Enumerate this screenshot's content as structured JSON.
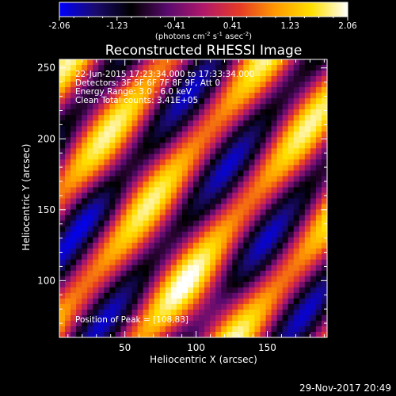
{
  "chart_data": {
    "type": "heatmap",
    "title": "Reconstructed RHESSI Image",
    "xlabel": "Heliocentric X (arcsec)",
    "ylabel": "Heliocentric Y (arcsec)",
    "x_range": [
      4,
      192
    ],
    "y_range": [
      60,
      256
    ],
    "x_ticks": [
      50,
      100,
      150
    ],
    "y_ticks": [
      100,
      150,
      200,
      250
    ],
    "colorbar": {
      "min": -2.06,
      "max": 2.06,
      "ticks": [
        "-2.06",
        "-1.23",
        "-0.41",
        "0.41",
        "1.23",
        "2.06"
      ],
      "unit_parts": [
        "(photons cm",
        "-2",
        " s",
        "-1",
        " asec",
        "-2",
        ")"
      ],
      "colormap": [
        "#0000ff",
        "#1a0a6e",
        "#000000",
        "#5a0a6e",
        "#b0186a",
        "#e63a26",
        "#ff9a00",
        "#ffe000",
        "#ffffff"
      ]
    },
    "annotations": [
      "22-Jun-2015 17:23:34.000 to 17:33:34.000",
      "Detectors: 3F 5F 6F 7F 8F 9F, Att 0",
      "Energy Range: 3.0 - 6.0 keV",
      "Clean     Total counts: 3.41E+05"
    ],
    "peak_label": "Position of Peak = [108,83]",
    "peak_position": [
      108,
      83
    ],
    "grid": false
  },
  "footer": {
    "timestamp": "29-Nov-2017 20:49"
  }
}
